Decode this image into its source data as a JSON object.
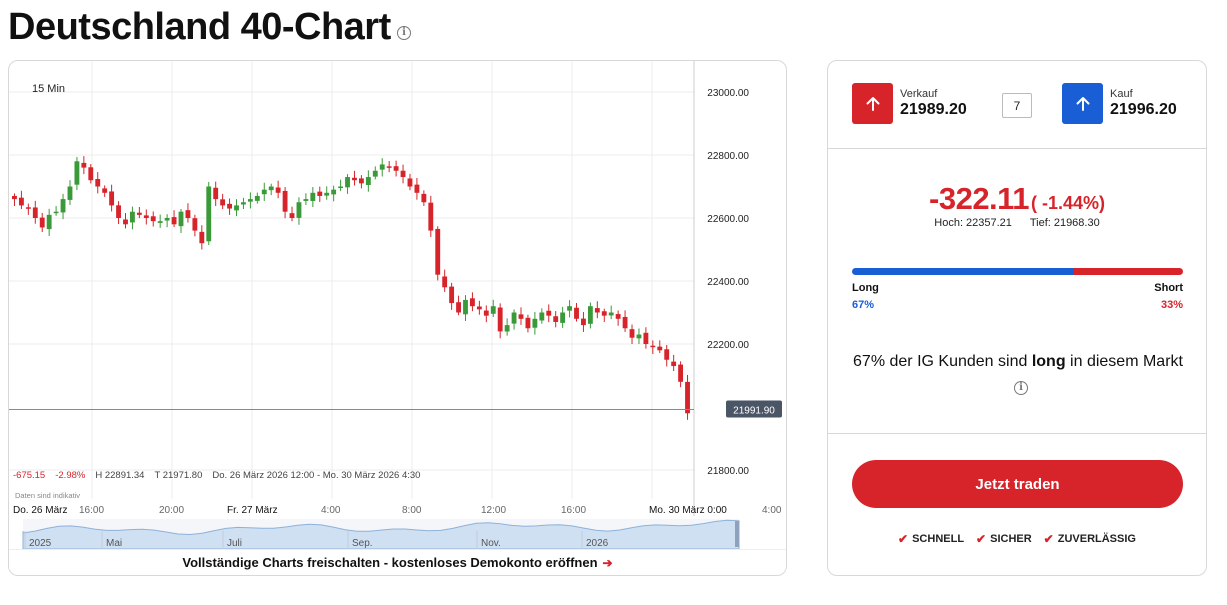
{
  "page": {
    "title": "Deutschland 40-Chart"
  },
  "chart": {
    "interval": "15 Min",
    "current_price_label": "21991.90",
    "current_price": 21991.9,
    "stats": {
      "change": "-675.15",
      "change_pct": "-2.98%",
      "high": "H 22891.34",
      "low": "T 21971.80",
      "range": "Do. 26 März 2026 12:00 - Mo. 30 März 2026 4:30"
    },
    "disclaimer": "Daten sind indikativ",
    "unlock_text": "Vollständige Charts freischalten - kostenloses Demokonto eröffnen",
    "colors": {
      "up": "#3a9a3a",
      "down": "#d6242a"
    }
  },
  "chart_data": {
    "type": "candlestick",
    "y_axis": {
      "ylim": [
        21800,
        23050
      ],
      "ticks": [
        "23000.00",
        "22800.00",
        "22600.00",
        "22400.00",
        "22200.00",
        "21800.00"
      ],
      "tick_values": [
        23000,
        22800,
        22600,
        22400,
        22200,
        21800
      ]
    },
    "x_axis_labels": [
      "Do. 26 März",
      "16:00",
      "20:00",
      "Fr. 27 März",
      "4:00",
      "8:00",
      "12:00",
      "16:00",
      "Mo. 30 März 0:00",
      "4:00"
    ],
    "navigator_labels": [
      "2025",
      "Mai",
      "Juli",
      "Sep.",
      "Nov.",
      "2026"
    ],
    "closes": [
      22660,
      22640,
      22630,
      22600,
      22570,
      22610,
      22620,
      22660,
      22700,
      22780,
      22760,
      22720,
      22700,
      22680,
      22640,
      22600,
      22580,
      22620,
      22610,
      22600,
      22590,
      22590,
      22600,
      22580,
      22620,
      22600,
      22560,
      22520,
      22700,
      22660,
      22640,
      22630,
      22640,
      22650,
      22660,
      22670,
      22690,
      22700,
      22680,
      22620,
      22600,
      22650,
      22660,
      22680,
      22670,
      22680,
      22690,
      22700,
      22730,
      22720,
      22710,
      22730,
      22750,
      22770,
      22760,
      22750,
      22730,
      22700,
      22680,
      22650,
      22560,
      22420,
      22380,
      22330,
      22300,
      22340,
      22320,
      22310,
      22290,
      22320,
      22240,
      22260,
      22300,
      22280,
      22250,
      22280,
      22300,
      22290,
      22270,
      22300,
      22320,
      22280,
      22260,
      22320,
      22300,
      22290,
      22300,
      22280,
      22250,
      22220,
      22230,
      22200,
      22190,
      22180,
      22150,
      22130,
      22080,
      21980
    ],
    "current_price": 21991.9
  },
  "trade": {
    "sell_label": "Verkauf",
    "sell_price": "21989.20",
    "spread": "7",
    "buy_label": "Kauf",
    "buy_price": "21996.20",
    "change": "-322.11",
    "change_pct": "( -1.44%)",
    "high_label": "Hoch:",
    "high": "22357.21",
    "low_label": "Tief:",
    "low": "21968.30",
    "long_label": "Long",
    "short_label": "Short",
    "long_pct": "67%",
    "short_pct": "33%",
    "long_fraction": 0.67,
    "sentiment_pre": "67% der IG Kunden sind",
    "sentiment_bold": "long",
    "sentiment_post": "in diesem Markt",
    "trade_button": "Jetzt traden",
    "badges": [
      "SCHNELL",
      "SICHER",
      "ZUVERLÄSSIG"
    ]
  }
}
